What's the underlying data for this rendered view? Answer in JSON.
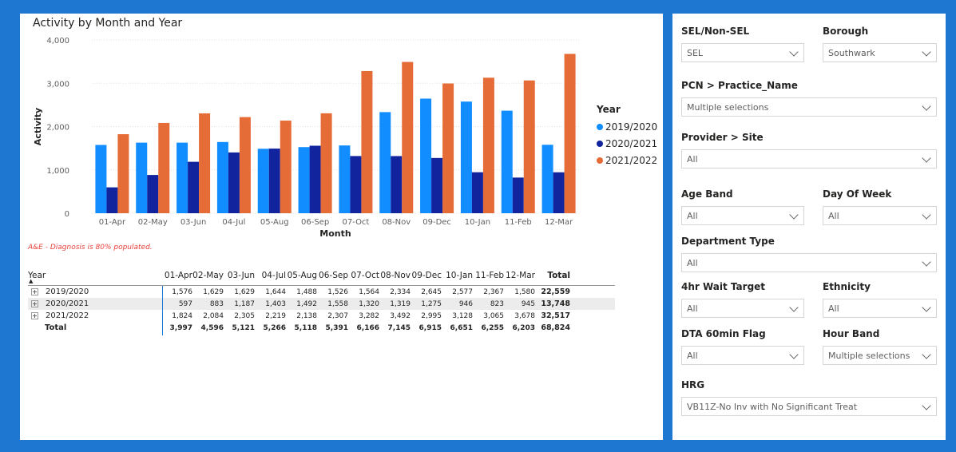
{
  "chart_data": {
    "type": "bar",
    "title": "Activity by Month and Year",
    "xlabel": "Month",
    "ylabel": "Activity",
    "ylim": [
      0,
      4000
    ],
    "yticks": [
      "0",
      "1,000",
      "2,000",
      "3,000",
      "4,000"
    ],
    "categories": [
      "01-Apr",
      "02-May",
      "03-Jun",
      "04-Jul",
      "05-Aug",
      "06-Sep",
      "07-Oct",
      "08-Nov",
      "09-Dec",
      "10-Jan",
      "11-Feb",
      "12-Mar"
    ],
    "series": [
      {
        "name": "2019/2020",
        "color": "#118dff",
        "values": [
          1576,
          1629,
          1629,
          1644,
          1488,
          1526,
          1564,
          2334,
          2645,
          2577,
          2367,
          1580
        ]
      },
      {
        "name": "2020/2021",
        "color": "#12239e",
        "values": [
          597,
          883,
          1187,
          1403,
          1492,
          1558,
          1320,
          1319,
          1275,
          946,
          823,
          945
        ]
      },
      {
        "name": "2021/2022",
        "color": "#e66c37",
        "values": [
          1824,
          2084,
          2305,
          2219,
          2138,
          2307,
          3282,
          3492,
          2995,
          3128,
          3065,
          3678
        ]
      }
    ],
    "legend_title": "Year",
    "legend_position": "right",
    "grid": true
  },
  "note": "A&E - Diagnosis is 80% populated.",
  "matrix": {
    "row_header": "Year",
    "columns": [
      "01-Apr",
      "02-May",
      "03-Jun",
      "04-Jul",
      "05-Aug",
      "06-Sep",
      "07-Oct",
      "08-Nov",
      "09-Dec",
      "10-Jan",
      "11-Feb",
      "12-Mar"
    ],
    "total_label": "Total",
    "rows": [
      {
        "label": "2019/2020",
        "values": [
          "1,576",
          "1,629",
          "1,629",
          "1,644",
          "1,488",
          "1,526",
          "1,564",
          "2,334",
          "2,645",
          "2,577",
          "2,367",
          "1,580"
        ],
        "total": "22,559"
      },
      {
        "label": "2020/2021",
        "values": [
          "597",
          "883",
          "1,187",
          "1,403",
          "1,492",
          "1,558",
          "1,320",
          "1,319",
          "1,275",
          "946",
          "823",
          "945"
        ],
        "total": "13,748"
      },
      {
        "label": "2021/2022",
        "values": [
          "1,824",
          "2,084",
          "2,305",
          "2,219",
          "2,138",
          "2,307",
          "3,282",
          "3,492",
          "2,995",
          "3,128",
          "3,065",
          "3,678"
        ],
        "total": "32,517"
      }
    ],
    "totals_row": {
      "label": "Total",
      "values": [
        "3,997",
        "4,596",
        "5,121",
        "5,266",
        "5,118",
        "5,391",
        "6,166",
        "7,145",
        "6,915",
        "6,651",
        "6,255",
        "6,203"
      ],
      "total": "68,824"
    }
  },
  "slicers": {
    "sel": {
      "label": "SEL/Non-SEL",
      "value": "SEL"
    },
    "borough": {
      "label": "Borough",
      "value": "Southwark"
    },
    "pcn": {
      "label": "PCN > Practice_Name",
      "value": "Multiple selections"
    },
    "provider": {
      "label": "Provider > Site",
      "value": "All"
    },
    "age_band": {
      "label": "Age Band",
      "value": "All"
    },
    "day_of_week": {
      "label": "Day Of Week",
      "value": "All"
    },
    "department_type": {
      "label": "Department Type",
      "value": "All"
    },
    "wait_target": {
      "label": "4hr Wait Target",
      "value": "All"
    },
    "ethnicity": {
      "label": "Ethnicity",
      "value": "All"
    },
    "dta_flag": {
      "label": "DTA 60min Flag",
      "value": "All"
    },
    "hour_band": {
      "label": "Hour Band",
      "value": "Multiple selections"
    },
    "hrg": {
      "label": "HRG",
      "value": "VB11Z-No Inv with No Significant Treat"
    }
  }
}
